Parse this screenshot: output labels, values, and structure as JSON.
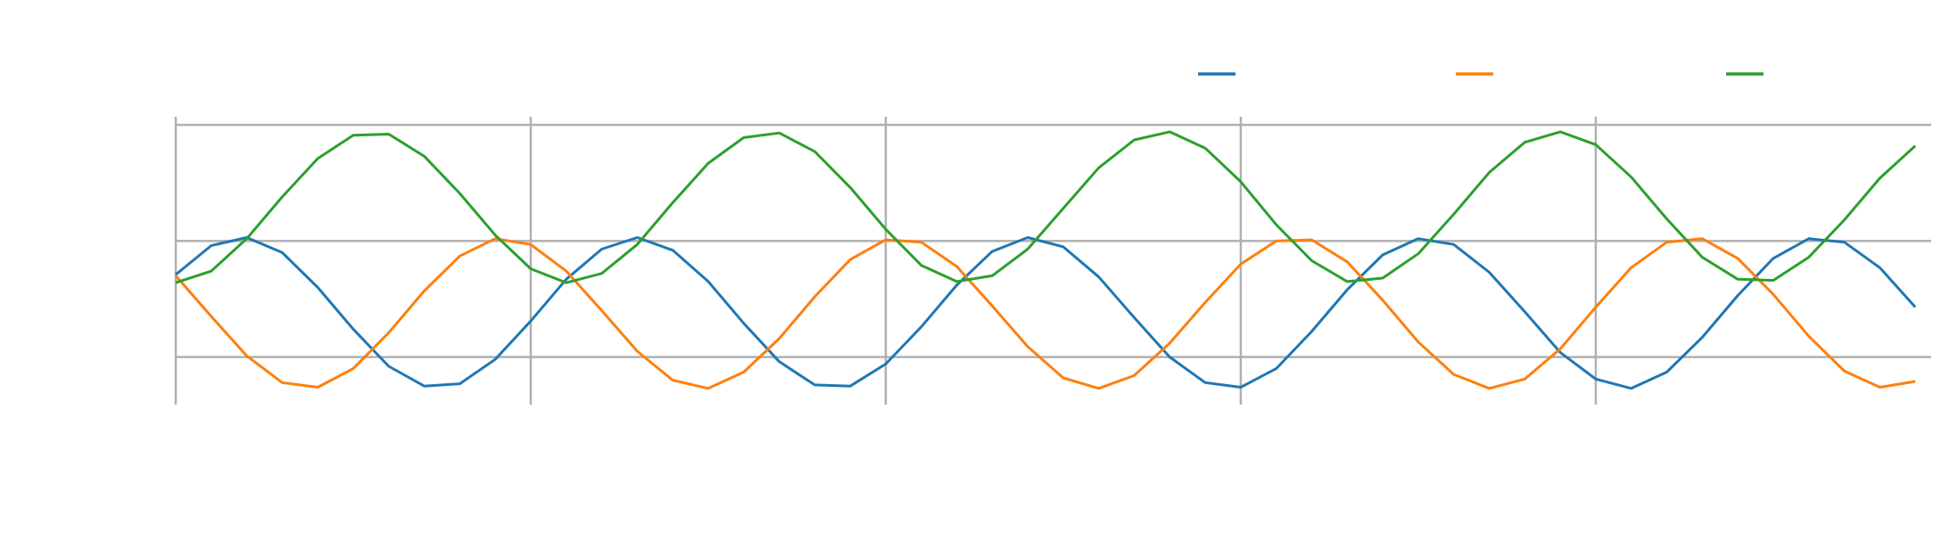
{
  "chart_data": {
    "type": "line",
    "title": "",
    "xlabel": "",
    "ylabel": "",
    "xlim": [
      0,
      4.945
    ],
    "ylim": [
      -1.41,
      1.07
    ],
    "x_gridlines": [
      0,
      1,
      2,
      3,
      4
    ],
    "y_gridlines": [
      -1,
      0,
      1
    ],
    "grid": true,
    "grid_color": "#b0b0b0",
    "legend": {
      "placement": "top-right",
      "entries_labeled": false
    },
    "x": [
      0.0,
      0.1,
      0.2,
      0.3,
      0.4,
      0.5,
      0.6,
      0.7,
      0.8,
      0.9,
      1.0,
      1.1,
      1.2,
      1.3,
      1.4,
      1.5,
      1.6,
      1.7,
      1.8,
      1.9,
      2.0,
      2.1,
      2.2,
      2.3,
      2.4,
      2.5,
      2.6,
      2.7,
      2.8,
      2.9,
      3.0,
      3.1,
      3.2,
      3.3,
      3.4,
      3.5,
      3.6,
      3.7,
      3.8,
      3.9,
      4.0,
      4.1,
      4.2,
      4.3,
      4.4,
      4.5,
      4.6,
      4.7,
      4.8,
      4.9
    ],
    "series": [
      {
        "color": "#1f77b4",
        "values": [
          -0.29,
          -0.04,
          0.03,
          -0.1,
          -0.4,
          -0.76,
          -1.08,
          -1.25,
          -1.23,
          -1.02,
          -0.69,
          -0.33,
          -0.07,
          0.03,
          -0.08,
          -0.35,
          -0.71,
          -1.04,
          -1.24,
          -1.25,
          -1.06,
          -0.74,
          -0.38,
          -0.09,
          0.03,
          -0.05,
          -0.31,
          -0.66,
          -1.0,
          -1.22,
          -1.26,
          -1.1,
          -0.78,
          -0.42,
          -0.12,
          0.02,
          -0.03,
          -0.27,
          -0.61,
          -0.96,
          -1.19,
          -1.27,
          -1.13,
          -0.83,
          -0.47,
          -0.15,
          0.02,
          -0.01,
          -0.23,
          -0.57
        ]
      },
      {
        "color": "#ff7f0e",
        "values": [
          -0.3,
          -0.65,
          -0.99,
          -1.22,
          -1.26,
          -1.1,
          -0.79,
          -0.43,
          -0.13,
          0.02,
          -0.03,
          -0.26,
          -0.6,
          -0.95,
          -1.2,
          -1.27,
          -1.13,
          -0.84,
          -0.48,
          -0.16,
          0.01,
          -0.01,
          -0.22,
          -0.56,
          -0.91,
          -1.18,
          -1.27,
          -1.16,
          -0.88,
          -0.53,
          -0.2,
          0.0,
          0.01,
          -0.18,
          -0.51,
          -0.87,
          -1.15,
          -1.27,
          -1.19,
          -0.93,
          -0.57,
          -0.23,
          -0.01,
          0.02,
          -0.15,
          -0.46,
          -0.82,
          -1.12,
          -1.26,
          -1.21
        ]
      },
      {
        "color": "#2ca02c",
        "values": [
          -0.36,
          -0.26,
          0.02,
          0.38,
          0.71,
          0.91,
          0.92,
          0.73,
          0.41,
          0.05,
          -0.24,
          -0.36,
          -0.28,
          -0.03,
          0.33,
          0.67,
          0.89,
          0.93,
          0.77,
          0.46,
          0.1,
          -0.21,
          -0.35,
          -0.3,
          -0.07,
          0.28,
          0.63,
          0.87,
          0.94,
          0.8,
          0.51,
          0.14,
          -0.17,
          -0.35,
          -0.32,
          -0.11,
          0.23,
          0.59,
          0.85,
          0.94,
          0.83,
          0.55,
          0.19,
          -0.14,
          -0.33,
          -0.34,
          -0.14,
          0.18,
          0.54,
          0.82
        ]
      }
    ]
  }
}
